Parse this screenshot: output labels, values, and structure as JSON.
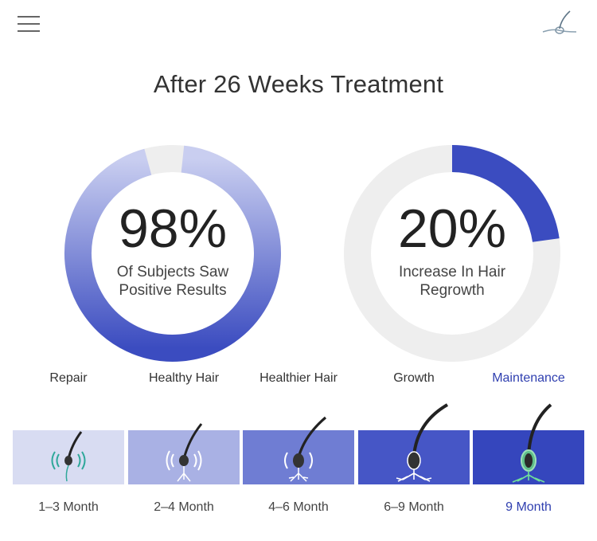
{
  "header": {
    "menu_icon": "hamburger-menu-icon",
    "logo_icon": "hair-follicle-logo-icon"
  },
  "title": "After 26 Weeks Treatment",
  "stats": [
    {
      "value": "98%",
      "caption_line1": "Of Subjects Saw",
      "caption_line2": "Positive Results",
      "fill_fraction": 0.98
    },
    {
      "value": "20%",
      "caption_line1": "Increase In Hair",
      "caption_line2": "Regrowth",
      "fill_fraction": 0.2
    }
  ],
  "timeline": {
    "stages": [
      {
        "label": "Repair",
        "period": "1–3 Month",
        "active": false
      },
      {
        "label": "Healthy Hair",
        "period": "2–4 Month",
        "active": false
      },
      {
        "label": "Healthier Hair",
        "period": "4–6 Month",
        "active": false
      },
      {
        "label": "Growth",
        "period": "6–9 Month",
        "active": false
      },
      {
        "label": "Maintenance",
        "period": "9 Month",
        "active": true
      }
    ]
  },
  "colors": {
    "ring_blue": "#3b4cc0",
    "ring_light": "#eeeeee",
    "active_text": "#3040b0",
    "tile_1": "#d8dcf2",
    "tile_2": "#a9b1e4",
    "tile_3": "#6f7dd3",
    "tile_4": "#4656c6",
    "tile_5": "#3546bd"
  }
}
